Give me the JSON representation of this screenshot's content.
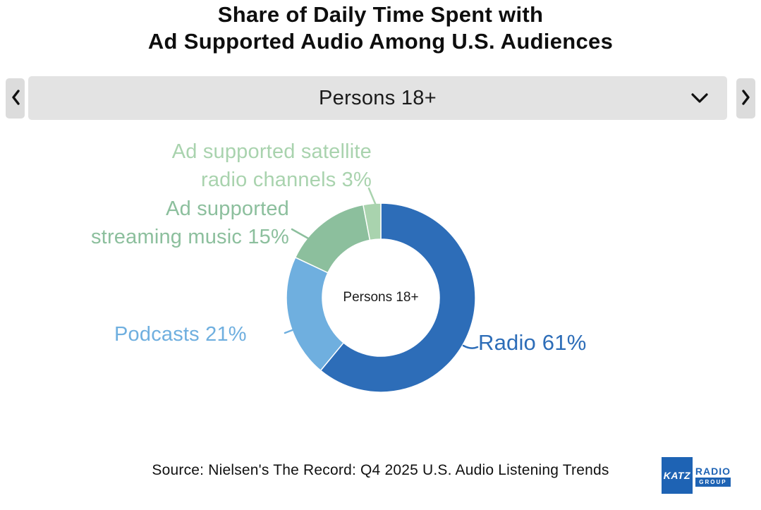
{
  "title": {
    "line1": "Share of Daily Time Spent with",
    "line2": "Ad Supported Audio Among U.S. Audiences"
  },
  "selector": {
    "value": "Persons 18+",
    "prev_icon": "chevron-left",
    "next_icon": "chevron-right",
    "open_icon": "chevron-down"
  },
  "chart_data": {
    "type": "pie",
    "variant": "donut",
    "title": "Share of Daily Time Spent with Ad Supported Audio Among U.S. Audiences",
    "center_label": "Persons 18+",
    "start_angle": "top",
    "direction": "clockwise",
    "legend_position": "callout-labels",
    "slices": [
      {
        "id": "radio",
        "label": "Radio",
        "value": 61,
        "display": "Radio 61%",
        "color": "#2d6db8"
      },
      {
        "id": "podcasts",
        "label": "Podcasts",
        "value": 21,
        "display": "Podcasts 21%",
        "color": "#6fafdf"
      },
      {
        "id": "streaming",
        "label": "Ad supported streaming music",
        "value": 15,
        "display": "Ad supported streaming music 15%",
        "color": "#8cbf9d"
      },
      {
        "id": "satellite",
        "label": "Ad supported satellite radio channels",
        "value": 3,
        "display": "Ad supported satellite radio channels 3%",
        "color": "#a9d3ae"
      }
    ]
  },
  "callouts": {
    "satellite": {
      "line1": "Ad supported satellite",
      "line2": "radio channels 3%"
    },
    "streaming": {
      "line1": "Ad supported",
      "line2": "streaming music 15%"
    },
    "podcasts": "Podcasts 21%",
    "radio": "Radio 61%"
  },
  "source": "Source: Nielsen's The Record: Q4 2025 U.S. Audio Listening Trends",
  "logo": {
    "katz": "KATZ",
    "radio": "RADIO",
    "group": "GROUP"
  }
}
